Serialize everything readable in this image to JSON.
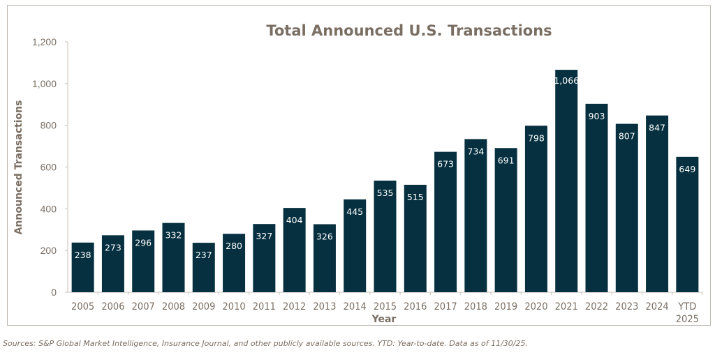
{
  "chart_data": {
    "type": "bar",
    "title": "Total Announced U.S. Transactions",
    "xlabel": "Year",
    "ylabel": "Announced Transactions",
    "categories": [
      "2005",
      "2006",
      "2007",
      "2008",
      "2009",
      "2010",
      "2011",
      "2012",
      "2013",
      "2014",
      "2015",
      "2016",
      "2017",
      "2018",
      "2019",
      "2020",
      "2021",
      "2022",
      "2023",
      "2024",
      "YTD 2025"
    ],
    "values": [
      238,
      273,
      296,
      332,
      237,
      280,
      327,
      404,
      326,
      445,
      535,
      515,
      673,
      734,
      691,
      798,
      1066,
      903,
      807,
      847,
      649
    ],
    "data_labels": [
      "238",
      "273",
      "296",
      "332",
      "237",
      "280",
      "327",
      "404",
      "326",
      "445",
      "535",
      "515",
      "673",
      "734",
      "691",
      "798",
      "1,066",
      "903",
      "807",
      "847",
      "649"
    ],
    "ylim": [
      0,
      1200
    ],
    "yticks": [
      "0",
      "200",
      "400",
      "600",
      "800",
      "1,000",
      "1,200"
    ],
    "grid": false,
    "legend": "none",
    "colors": {
      "bar": "#06303f",
      "text": "#7a6e63",
      "frame": "#bdb7b0"
    }
  },
  "footnote": "Sources: S&P Global Market Intelligence, Insurance Journal, and other publicly available sources. YTD: Year-to-date. Data as of 11/30/25."
}
